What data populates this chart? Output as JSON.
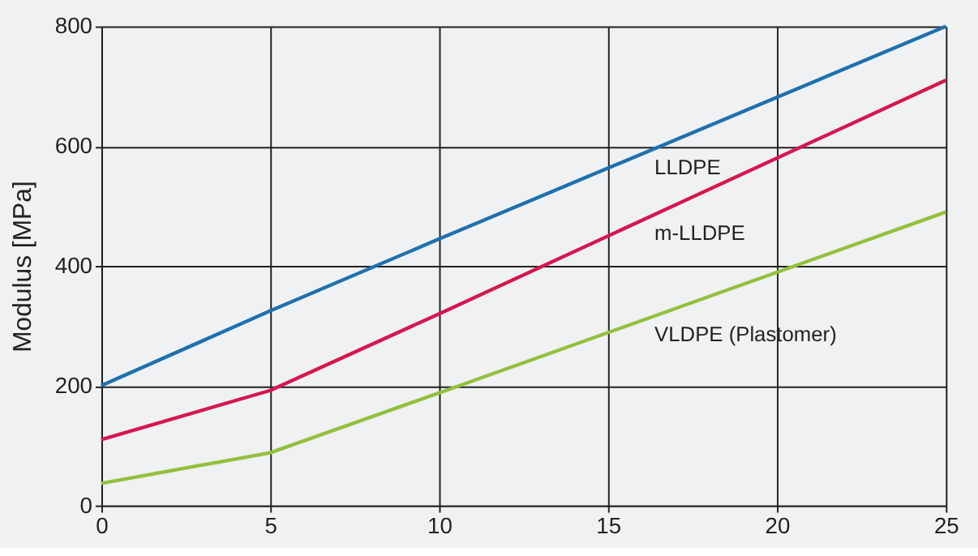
{
  "chart_data": {
    "type": "line",
    "ylabel": "Modulus [MPa]",
    "x": [
      0,
      5,
      10,
      25
    ],
    "series": [
      {
        "name": "LLDPE",
        "color": "#1f70ad",
        "values": [
          200,
          325,
          445,
          800
        ]
      },
      {
        "name": "m-LLDPE",
        "color": "#d4184f",
        "values": [
          110,
          192,
          320,
          710
        ]
      },
      {
        "name": "VLDPE (Plastomer)",
        "color": "#93c03c",
        "values": [
          37,
          88,
          188,
          490
        ]
      }
    ],
    "xlim": [
      0,
      25
    ],
    "xticks": [
      0,
      5,
      10,
      15,
      20,
      25
    ],
    "ylim": [
      0,
      800
    ],
    "yticks": [
      0,
      200,
      400,
      600,
      800
    ],
    "grid": true,
    "legend": false,
    "marker": "none",
    "line_style": "solid"
  }
}
